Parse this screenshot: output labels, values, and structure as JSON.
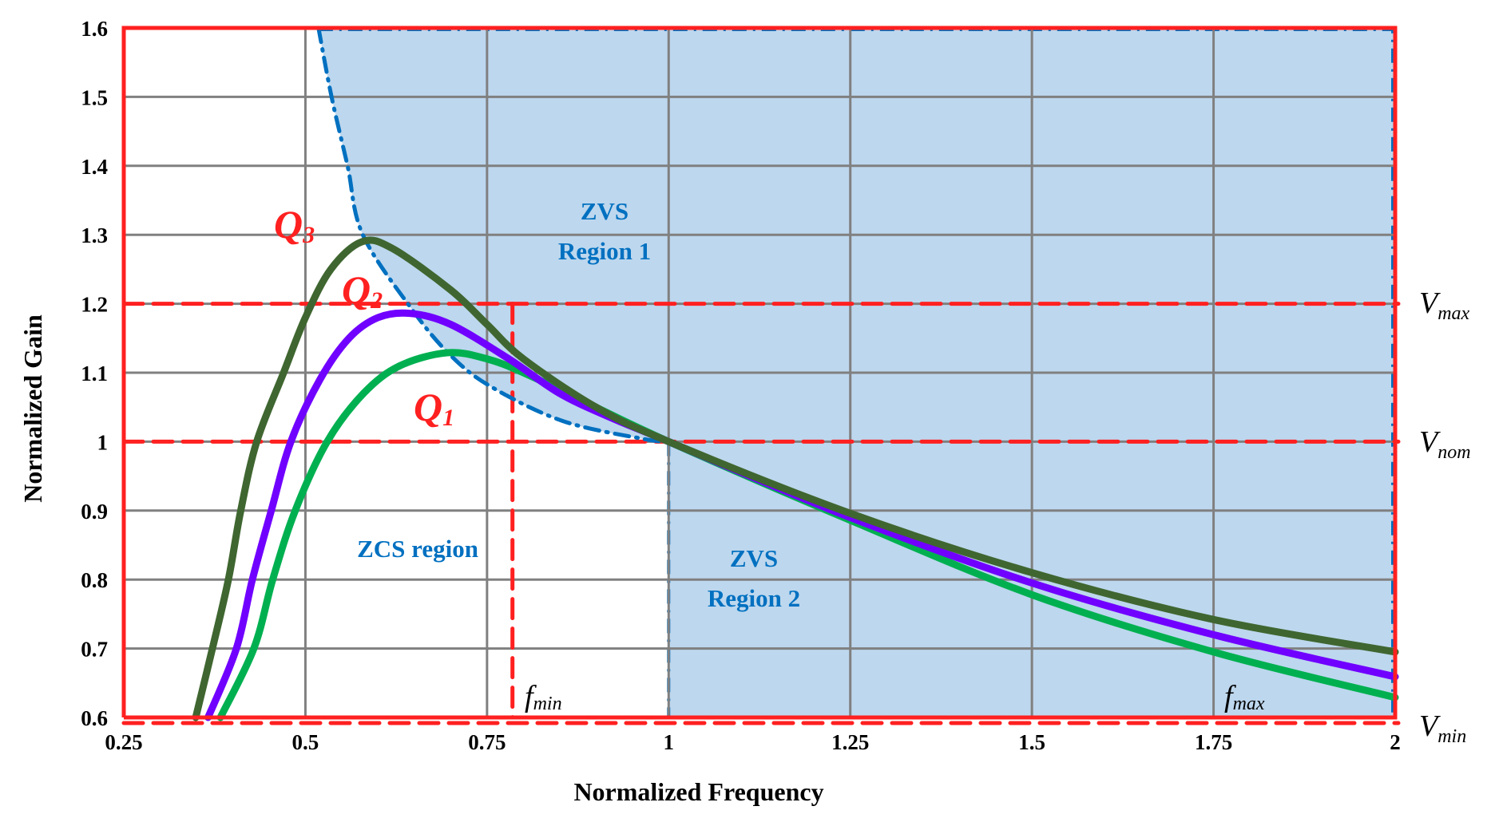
{
  "chart_data": {
    "type": "line",
    "title": "",
    "xlabel": "Normalized Frequency",
    "ylabel": "Normalized Gain",
    "xlim": [
      0.25,
      2
    ],
    "ylim": [
      0.6,
      1.6
    ],
    "grid": true,
    "x_ticks": [
      "0.25",
      "0.5",
      "0.75",
      "1",
      "1.25",
      "1.5",
      "1.75",
      "2"
    ],
    "x_tick_values": [
      0.25,
      0.5,
      0.75,
      1,
      1.25,
      1.5,
      1.75,
      2
    ],
    "y_ticks": [
      "0.6",
      "0.7",
      "0.8",
      "0.9",
      "1",
      "1.1",
      "1.2",
      "1.3",
      "1.4",
      "1.5",
      "1.6"
    ],
    "y_tick_values": [
      0.6,
      0.7,
      0.8,
      0.9,
      1.0,
      1.1,
      1.2,
      1.3,
      1.4,
      1.5,
      1.6
    ],
    "series": [
      {
        "name": "Q1",
        "color": "#00B050",
        "x": [
          0.383,
          0.429,
          0.455,
          0.486,
          0.53,
          0.58,
          0.63,
          0.696,
          0.75,
          0.8,
          0.88,
          1.0,
          1.25,
          1.5,
          1.75,
          2.0
        ],
        "y": [
          0.6,
          0.7,
          0.8,
          0.9,
          1.0,
          1.07,
          1.11,
          1.129,
          1.12,
          1.1,
          1.06,
          1.0,
          0.886,
          0.778,
          0.695,
          0.629
        ]
      },
      {
        "name": "Q2",
        "color": "#7000FF",
        "x": [
          0.366,
          0.405,
          0.427,
          0.453,
          0.48,
          0.52,
          0.56,
          0.6,
          0.644,
          0.7,
          0.78,
          0.85,
          0.92,
          1.0,
          1.25,
          1.5,
          1.75,
          2.0
        ],
        "y": [
          0.6,
          0.7,
          0.8,
          0.9,
          1.0,
          1.09,
          1.15,
          1.18,
          1.186,
          1.17,
          1.12,
          1.07,
          1.035,
          1.0,
          0.89,
          0.795,
          0.72,
          0.659
        ]
      },
      {
        "name": "Q3",
        "color": "#3F6630",
        "x": [
          0.349,
          0.372,
          0.394,
          0.411,
          0.433,
          0.47,
          0.5,
          0.535,
          0.578,
          0.62,
          0.7,
          0.75,
          0.8,
          0.9,
          1.0,
          1.25,
          1.5,
          1.75,
          2.0
        ],
        "y": [
          0.6,
          0.7,
          0.8,
          0.9,
          1.0,
          1.1,
          1.18,
          1.25,
          1.29,
          1.28,
          1.22,
          1.17,
          1.12,
          1.05,
          1.0,
          0.896,
          0.81,
          0.742,
          0.695
        ]
      }
    ],
    "zvs_boundary": {
      "name": "ZVS/ZCS boundary",
      "color": "#0070C0",
      "style": "dash-dot",
      "x": [
        0.518,
        0.536,
        0.558,
        0.579,
        0.648,
        0.7,
        0.755,
        0.854,
        0.965,
        1.0
      ],
      "y": [
        1.6,
        1.5,
        1.4,
        1.3,
        1.19,
        1.125,
        1.08,
        1.03,
        1.004,
        1.0
      ]
    },
    "reference_lines": {
      "horizontal": [
        {
          "label": "V_max",
          "value": 1.2,
          "color": "#FF2020",
          "style": "dashed"
        },
        {
          "label": "V_nom",
          "value": 1.0,
          "color": "#FF2020",
          "style": "dashed"
        },
        {
          "label": "V_min",
          "value": 0.6,
          "color": "#FF2020",
          "style": "dashed"
        }
      ],
      "vertical": [
        {
          "label": "f_min",
          "value": 0.785,
          "color": "#FF2020",
          "style": "dashed"
        },
        {
          "label": "f_max",
          "value": 2.0,
          "color": "#FF2020",
          "style": "solid"
        }
      ]
    },
    "regions": [
      {
        "label": "ZVS Region 1",
        "fill": "#BDD7EE"
      },
      {
        "label": "ZVS Region 2",
        "fill": "#BDD7EE",
        "x_range": [
          1.0,
          2.0
        ],
        "y_range": [
          0.6,
          1.0
        ]
      },
      {
        "label": "ZCS region",
        "fill": "#FFFFFF"
      }
    ],
    "annotations": [
      "Q3",
      "Q2",
      "Q1",
      "ZVS Region 1",
      "ZVS Region 2",
      "ZCS region",
      "f_min",
      "f_max",
      "V_max",
      "V_nom",
      "V_min"
    ]
  },
  "labels": {
    "xlabel": "Normalized Frequency",
    "ylabel": "Normalized Gain",
    "zvs1_line1": "ZVS",
    "zvs1_line2": "Region 1",
    "zvs2_line1": "ZVS",
    "zvs2_line2": "Region 2",
    "zcs": "ZCS region",
    "q3_main": "Q",
    "q3_sub": "3",
    "q2_main": "Q",
    "q2_sub": "2",
    "q1_main": "Q",
    "q1_sub": "1",
    "fmin_main": "f",
    "fmin_sub": "min",
    "fmax_main": "f",
    "fmax_sub": "max",
    "vmax_main": "V",
    "vmax_sub": "max",
    "vnom_main": "V",
    "vnom_sub": "nom",
    "vmin_main": "V",
    "vmin_sub": "min"
  },
  "colors": {
    "frame": "#FF2020",
    "grid": "#808080",
    "zvs_fill": "#BDD7EE",
    "boundary": "#0070C0"
  }
}
